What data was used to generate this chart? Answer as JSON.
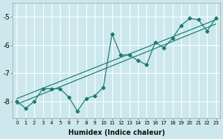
{
  "xlabel": "Humidex (Indice chaleur)",
  "ylabel": "",
  "bg_color": "#cce8ec",
  "line_color": "#1a7a6e",
  "grid_color": "#ffffff",
  "xlim": [
    -0.5,
    23.5
  ],
  "ylim": [
    -8.6,
    -4.5
  ],
  "yticks": [
    -8,
    -7,
    -6,
    -5
  ],
  "xticks": [
    0,
    1,
    2,
    3,
    4,
    5,
    6,
    7,
    8,
    9,
    10,
    11,
    12,
    13,
    14,
    15,
    16,
    17,
    18,
    19,
    20,
    21,
    22,
    23
  ],
  "series1_x": [
    0,
    1,
    2,
    3,
    4,
    5,
    6,
    7,
    8,
    9,
    10,
    11,
    12,
    13,
    14,
    15,
    16,
    17,
    18,
    19,
    20,
    21,
    22,
    23
  ],
  "series1_y": [
    -8.0,
    -8.25,
    -8.0,
    -7.55,
    -7.55,
    -7.55,
    -7.85,
    -8.35,
    -7.9,
    -7.8,
    -7.5,
    -5.6,
    -6.35,
    -6.35,
    -6.55,
    -6.7,
    -5.9,
    -6.1,
    -5.75,
    -5.3,
    -5.05,
    -5.1,
    -5.5,
    -5.05
  ],
  "trend1_x": [
    0,
    23
  ],
  "trend1_y": [
    -7.9,
    -5.1
  ],
  "trend2_x": [
    0,
    23
  ],
  "trend2_y": [
    -8.1,
    -5.25
  ],
  "marker": "D",
  "marker_size": 2.5
}
